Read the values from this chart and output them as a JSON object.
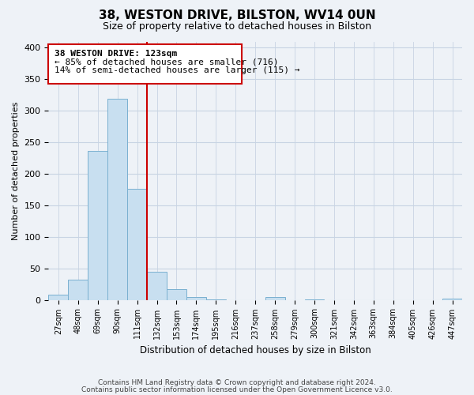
{
  "title": "38, WESTON DRIVE, BILSTON, WV14 0UN",
  "subtitle": "Size of property relative to detached houses in Bilston",
  "xlabel": "Distribution of detached houses by size in Bilston",
  "ylabel": "Number of detached properties",
  "bin_labels": [
    "27sqm",
    "48sqm",
    "69sqm",
    "90sqm",
    "111sqm",
    "132sqm",
    "153sqm",
    "174sqm",
    "195sqm",
    "216sqm",
    "237sqm",
    "258sqm",
    "279sqm",
    "300sqm",
    "321sqm",
    "342sqm",
    "363sqm",
    "384sqm",
    "405sqm",
    "426sqm",
    "447sqm"
  ],
  "bar_heights": [
    8,
    32,
    237,
    319,
    176,
    45,
    17,
    5,
    1,
    0,
    0,
    4,
    0,
    1,
    0,
    0,
    0,
    0,
    0,
    0,
    2
  ],
  "bar_color": "#c8dff0",
  "bar_edge_color": "#7ab0d0",
  "property_line_color": "#cc0000",
  "ylim": [
    0,
    410
  ],
  "yticks": [
    0,
    50,
    100,
    150,
    200,
    250,
    300,
    350,
    400
  ],
  "annotation_title": "38 WESTON DRIVE: 123sqm",
  "annotation_line1": "← 85% of detached houses are smaller (716)",
  "annotation_line2": "14% of semi-detached houses are larger (115) →",
  "footer_line1": "Contains HM Land Registry data © Crown copyright and database right 2024.",
  "footer_line2": "Contains public sector information licensed under the Open Government Licence v3.0.",
  "background_color": "#eef2f7",
  "plot_bg_color": "#eef2f7",
  "grid_color": "#c8d4e3"
}
